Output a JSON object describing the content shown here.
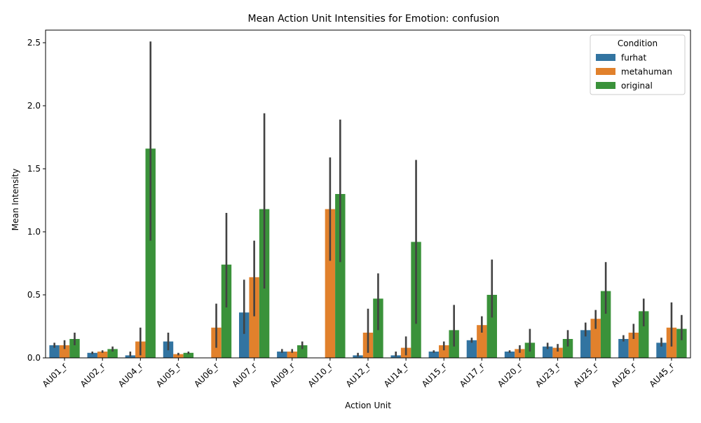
{
  "chart_data": {
    "type": "bar",
    "title": "Mean Action Unit Intensities for Emotion: confusion",
    "xlabel": "Action Unit",
    "ylabel": "Mean Intensity",
    "ylim": [
      0,
      2.6
    ],
    "yticks": [
      "0.0",
      "0.5",
      "1.0",
      "1.5",
      "2.0",
      "2.5"
    ],
    "grid": false,
    "legend": {
      "title": "Condition",
      "placement": "top-right"
    },
    "categories": [
      "AU01_r",
      "AU02_r",
      "AU04_r",
      "AU05_r",
      "AU06_r",
      "AU07_r",
      "AU09_r",
      "AU10_r",
      "AU12_r",
      "AU14_r",
      "AU15_r",
      "AU17_r",
      "AU20_r",
      "AU23_r",
      "AU25_r",
      "AU26_r",
      "AU45_r"
    ],
    "series": [
      {
        "name": "furhat",
        "color": "#3274a1",
        "values": [
          0.1,
          0.04,
          0.02,
          0.13,
          0.0,
          0.36,
          0.05,
          0.0,
          0.02,
          0.02,
          0.05,
          0.14,
          0.05,
          0.09,
          0.22,
          0.15,
          0.12
        ],
        "err_low": [
          0.08,
          0.03,
          0.01,
          0.06,
          0.0,
          0.19,
          0.04,
          0.0,
          0.01,
          0.01,
          0.04,
          0.12,
          0.04,
          0.07,
          0.17,
          0.13,
          0.09
        ],
        "err_high": [
          0.12,
          0.05,
          0.05,
          0.2,
          0.0,
          0.62,
          0.07,
          0.0,
          0.04,
          0.05,
          0.06,
          0.16,
          0.06,
          0.12,
          0.28,
          0.18,
          0.16
        ]
      },
      {
        "name": "metahuman",
        "color": "#e1812c",
        "values": [
          0.1,
          0.05,
          0.13,
          0.03,
          0.24,
          0.64,
          0.05,
          1.18,
          0.2,
          0.08,
          0.1,
          0.26,
          0.07,
          0.08,
          0.31,
          0.2,
          0.24
        ],
        "err_low": [
          0.07,
          0.04,
          0.02,
          0.02,
          0.08,
          0.33,
          0.04,
          0.77,
          0.04,
          0.02,
          0.06,
          0.2,
          0.04,
          0.05,
          0.23,
          0.15,
          0.09
        ],
        "err_high": [
          0.14,
          0.06,
          0.24,
          0.04,
          0.43,
          0.93,
          0.07,
          1.59,
          0.39,
          0.17,
          0.13,
          0.33,
          0.1,
          0.11,
          0.38,
          0.27,
          0.44
        ]
      },
      {
        "name": "original",
        "color": "#3a923a",
        "values": [
          0.15,
          0.07,
          1.66,
          0.04,
          0.74,
          1.18,
          0.1,
          1.3,
          0.47,
          0.92,
          0.22,
          0.5,
          0.12,
          0.15,
          0.53,
          0.37,
          0.23
        ],
        "err_low": [
          0.1,
          0.05,
          0.93,
          0.03,
          0.4,
          0.55,
          0.07,
          0.76,
          0.22,
          0.27,
          0.09,
          0.32,
          0.05,
          0.09,
          0.35,
          0.25,
          0.14
        ],
        "err_high": [
          0.2,
          0.09,
          2.51,
          0.05,
          1.15,
          1.94,
          0.13,
          1.89,
          0.67,
          1.57,
          0.42,
          0.78,
          0.23,
          0.22,
          0.76,
          0.47,
          0.34
        ]
      }
    ]
  }
}
